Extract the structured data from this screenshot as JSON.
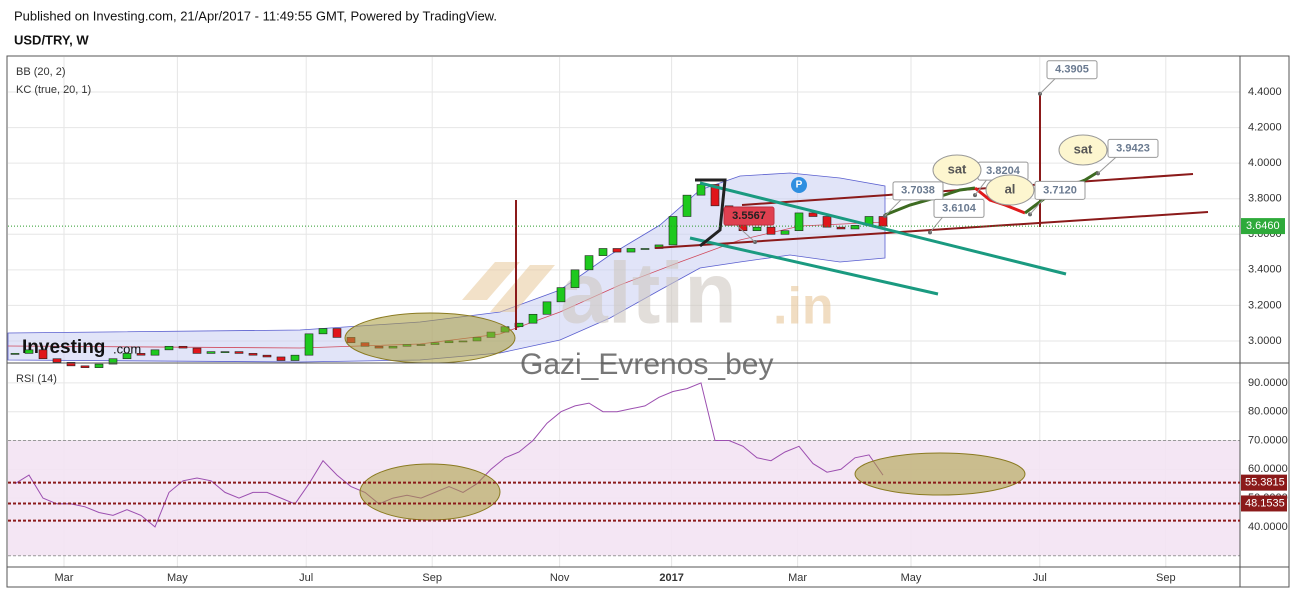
{
  "header": {
    "published": "Published on Investing.com, 21/Apr/2017 - 11:49:55 GMT, Powered by TradingView.",
    "symbol": "USD/TRY, W"
  },
  "watermarks": {
    "logo": "Investing",
    "logo_suffix": ".com",
    "site": "altin",
    "site_suffix": ".in",
    "author": "Gazi_Evrenos_bey"
  },
  "chart_data": [
    {
      "type": "candlestick",
      "indicators": [
        "BB (20, 2)",
        "KC (true, 20, 1)"
      ],
      "marker": "P",
      "xlim": [
        0,
        88
      ],
      "ylim": [
        2.876,
        4.597
      ],
      "grid": true,
      "up_color": "#1ec91e",
      "down_color": "#e0151b",
      "yticks": [
        {
          "value": 3.0,
          "label": "3.0000"
        },
        {
          "value": 3.2,
          "label": "3.2000"
        },
        {
          "value": 3.4,
          "label": "3.4000"
        },
        {
          "value": 3.6,
          "label": "3.6000"
        },
        {
          "value": 3.8,
          "label": "3.8000"
        },
        {
          "value": 4.0,
          "label": "4.0000"
        },
        {
          "value": 4.2,
          "label": "4.2000"
        },
        {
          "value": 4.4,
          "label": "4.4000"
        }
      ],
      "values": [
        2.93,
        2.95,
        2.9,
        2.88,
        2.86,
        2.85,
        2.87,
        2.9,
        2.93,
        2.92,
        2.95,
        2.97,
        2.96,
        2.93,
        2.94,
        2.94,
        2.93,
        2.92,
        2.91,
        2.89,
        2.92,
        3.04,
        3.07,
        3.02,
        2.99,
        2.97,
        2.96,
        2.97,
        2.98,
        2.98,
        2.99,
        3.0,
        3.0,
        3.02,
        3.05,
        3.08,
        3.1,
        3.15,
        3.22,
        3.3,
        3.4,
        3.48,
        3.52,
        3.5,
        3.52,
        3.52,
        3.54,
        3.7,
        3.82,
        3.88,
        3.76,
        3.65,
        3.62,
        3.64,
        3.6,
        3.62,
        3.72,
        3.7,
        3.64,
        3.63,
        3.65,
        3.7,
        3.646
      ],
      "last": {
        "value": 3.646,
        "label": "3.6460"
      },
      "annotations": [
        {
          "value": 4.3905,
          "label": "4.3905"
        },
        {
          "value": 3.9423,
          "label": "3.9423"
        },
        {
          "value": 3.8204,
          "label": "3.8204"
        },
        {
          "value": 3.712,
          "label": "3.7120"
        },
        {
          "value": 3.7038,
          "label": "3.7038"
        },
        {
          "value": 3.6104,
          "label": "3.6104"
        },
        {
          "value": 3.5567,
          "label": "3.5567"
        }
      ],
      "signals": [
        "sat",
        "al",
        "sat"
      ]
    },
    {
      "type": "line",
      "title": "RSI (14)",
      "color": "#9c4fb0",
      "xlim": [
        0,
        88
      ],
      "ylim": [
        26.1,
        96.9
      ],
      "grid": true,
      "xticks": [
        {
          "value": 4,
          "label": "Mar"
        },
        {
          "value": 12.1,
          "label": "May"
        },
        {
          "value": 21.3,
          "label": "Jul"
        },
        {
          "value": 30.3,
          "label": "Sep"
        },
        {
          "value": 39.4,
          "label": "Nov"
        },
        {
          "value": 47.4,
          "label": "2017"
        },
        {
          "value": 56.4,
          "label": "Mar"
        },
        {
          "value": 64.5,
          "label": "May"
        },
        {
          "value": 73.7,
          "label": "Jul"
        },
        {
          "value": 82.7,
          "label": "Sep"
        }
      ],
      "yticks": [
        {
          "value": 40,
          "label": "40.0000"
        },
        {
          "value": 50,
          "label": "50.0000"
        },
        {
          "value": 60,
          "label": "60.0000"
        },
        {
          "value": 70,
          "label": "70.0000"
        },
        {
          "value": 80,
          "label": "80.0000"
        },
        {
          "value": 90,
          "label": "90.0000"
        }
      ],
      "band": [
        30,
        70
      ],
      "values": [
        55,
        58,
        50,
        48,
        48,
        47,
        45,
        44,
        46,
        44,
        40,
        52,
        56,
        57,
        56,
        52,
        50,
        52,
        52,
        50,
        48,
        55,
        63,
        58,
        54,
        52,
        48,
        50,
        51,
        50,
        52,
        54,
        52,
        55,
        60,
        64,
        66,
        70,
        76,
        80,
        82,
        83,
        80,
        80,
        81,
        82,
        85,
        87,
        88,
        90,
        70,
        70,
        68,
        64,
        63,
        66,
        68,
        62,
        59,
        60,
        64,
        65,
        58
      ],
      "levels": [
        {
          "value": 55.3815,
          "label": "55.3815"
        },
        {
          "value": 48.1535,
          "label": "48.1535"
        }
      ],
      "guide_lines": [
        42.2
      ]
    }
  ]
}
